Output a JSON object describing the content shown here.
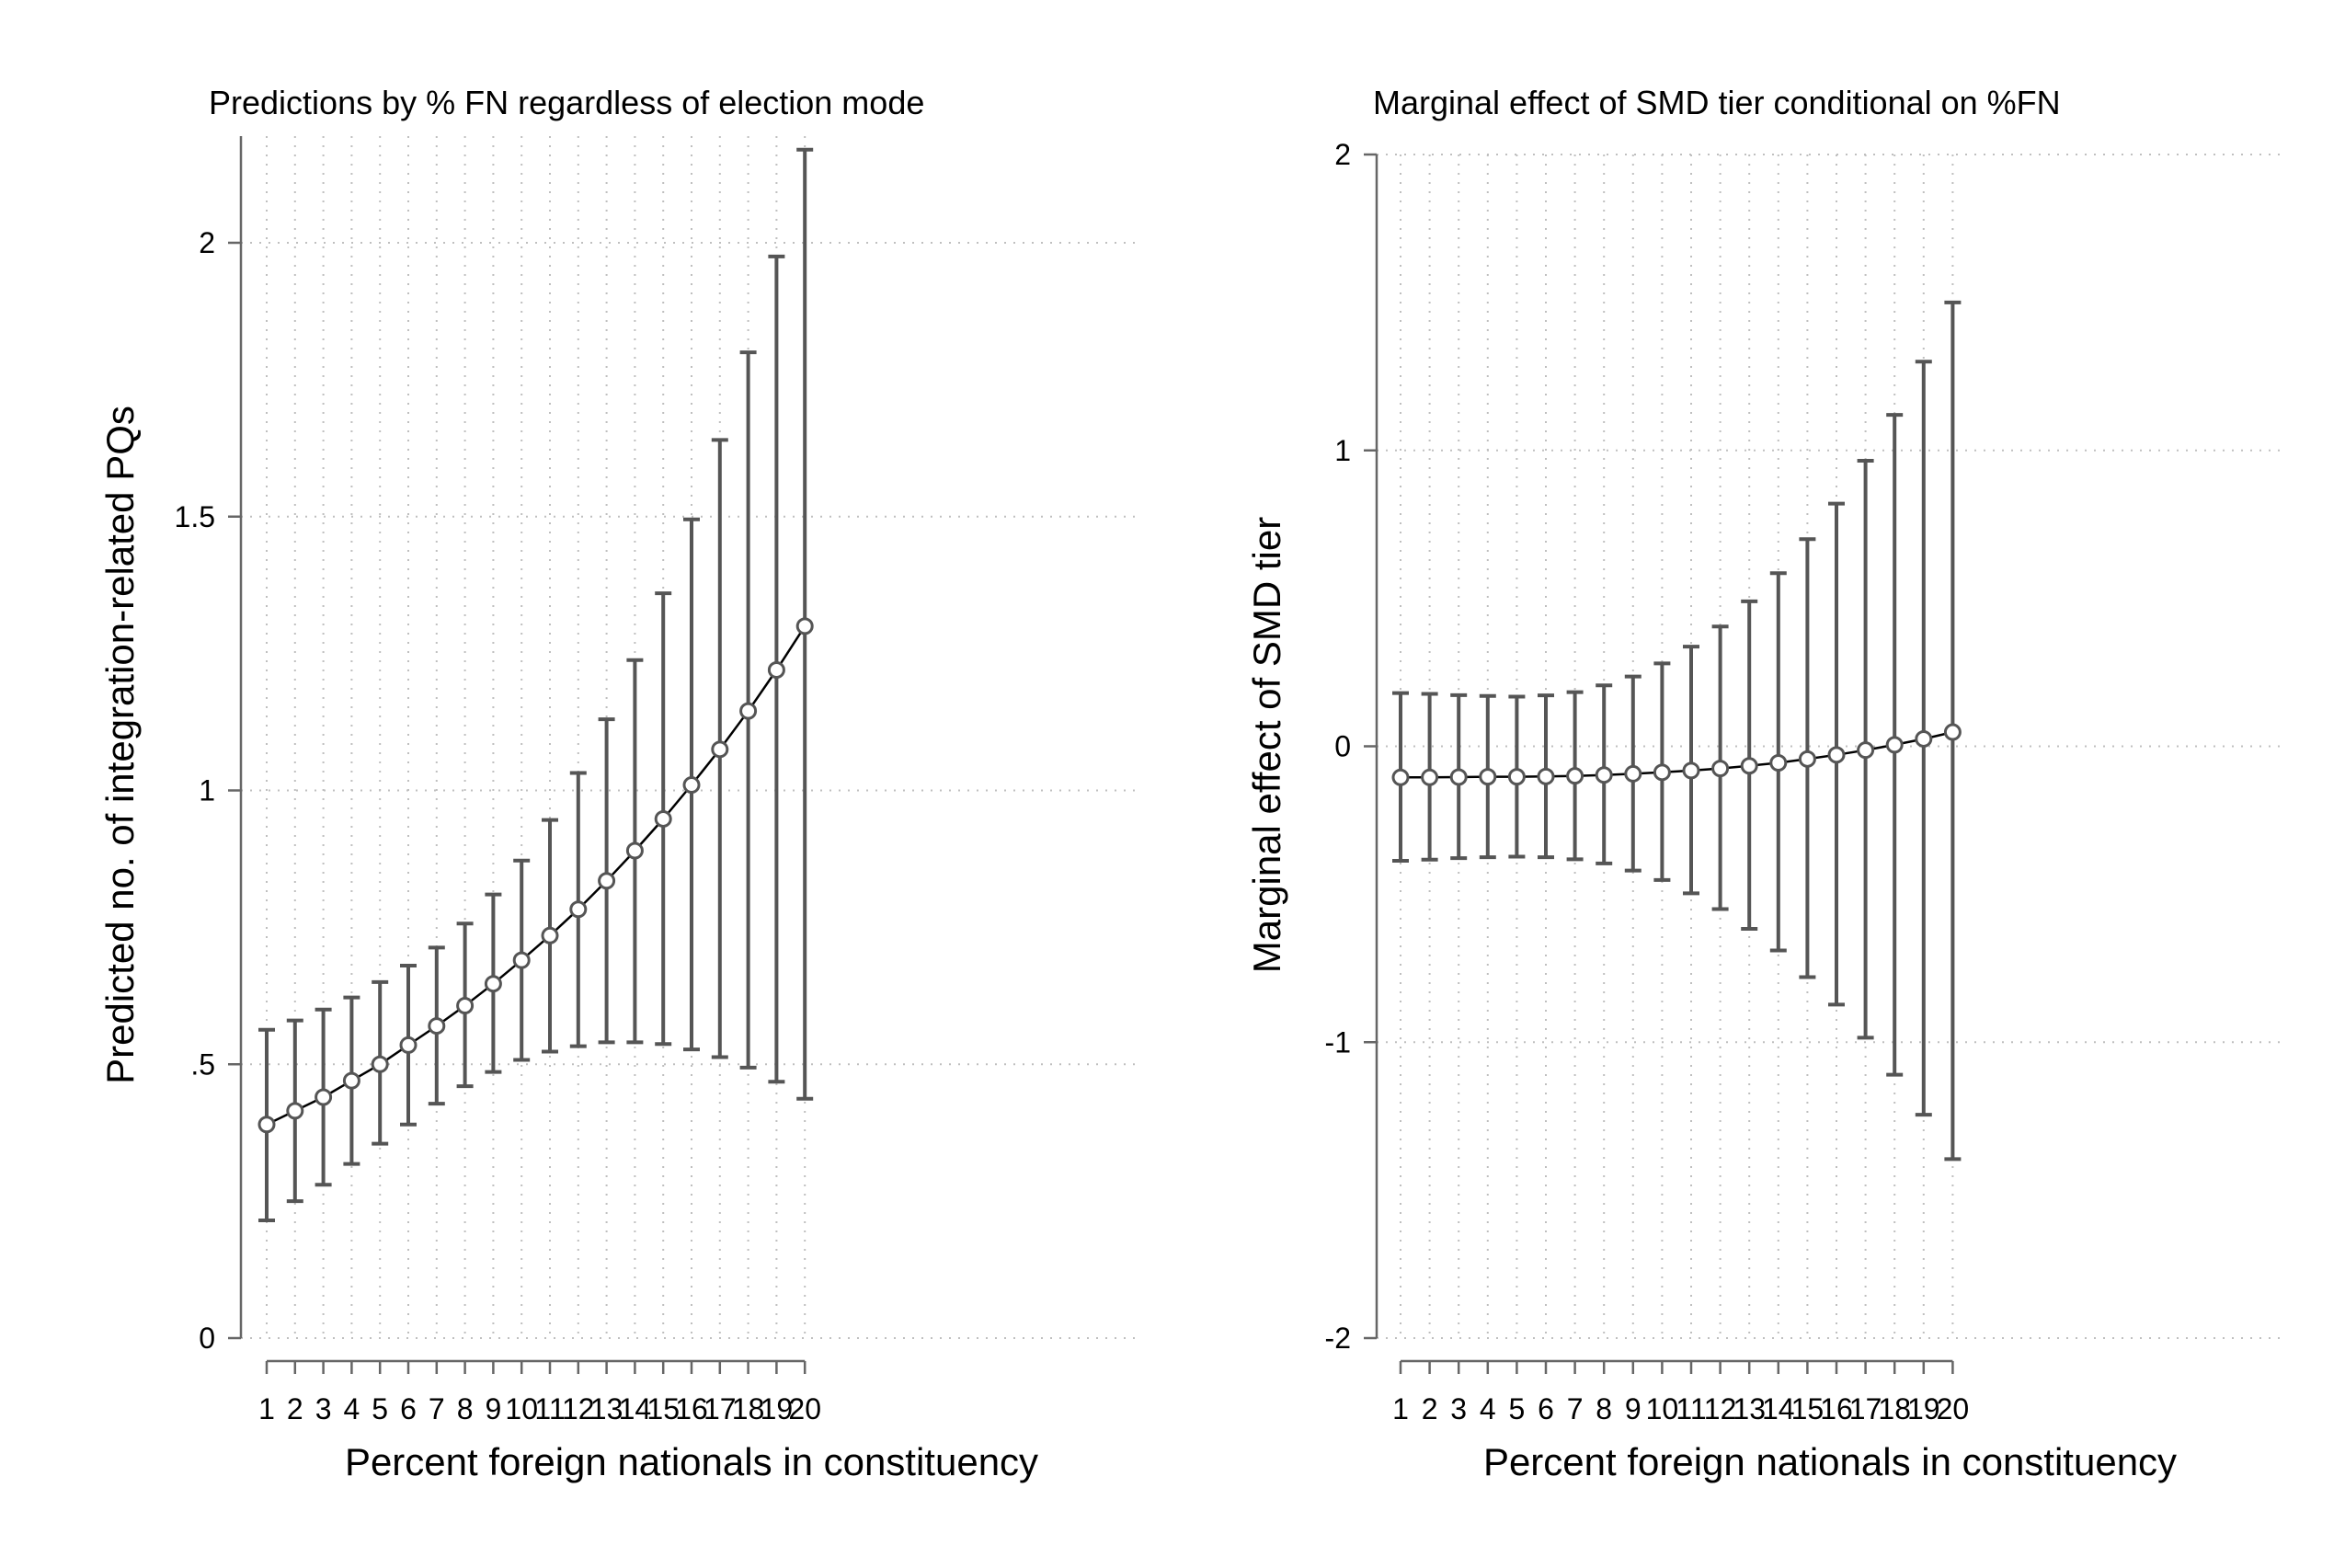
{
  "chart_data": [
    {
      "type": "line",
      "title": "Predictions by % FN regardless of election mode",
      "xlabel": "Percent foreign nationals in constituency",
      "ylabel": "Predicted no. of integration-related PQs",
      "x": [
        1,
        2,
        3,
        4,
        5,
        6,
        7,
        8,
        9,
        10,
        11,
        12,
        13,
        14,
        15,
        16,
        17,
        18,
        19,
        20
      ],
      "series": [
        {
          "values": [
            0.39,
            0.415,
            0.44,
            0.47,
            0.5,
            0.535,
            0.57,
            0.607,
            0.647,
            0.69,
            0.735,
            0.783,
            0.835,
            0.89,
            0.948,
            1.01,
            1.075,
            1.145,
            1.22,
            1.3
          ],
          "ci_lower": [
            0.215,
            0.25,
            0.28,
            0.318,
            0.355,
            0.39,
            0.428,
            0.46,
            0.486,
            0.508,
            0.523,
            0.533,
            0.54,
            0.54,
            0.537,
            0.527,
            0.513,
            0.494,
            0.468,
            0.437
          ],
          "ci_upper": [
            0.563,
            0.58,
            0.6,
            0.622,
            0.65,
            0.68,
            0.713,
            0.757,
            0.81,
            0.872,
            0.946,
            1.032,
            1.13,
            1.238,
            1.36,
            1.495,
            1.64,
            1.8,
            1.975,
            2.17
          ]
        }
      ],
      "xticks": [
        "1",
        "2",
        "3",
        "4",
        "5",
        "6",
        "7",
        "8",
        "9",
        "10",
        "11",
        "12",
        "13",
        "14",
        "15",
        "16",
        "17",
        "18",
        "19",
        "20"
      ],
      "yticks": [
        {
          "value": 0,
          "label": "0"
        },
        {
          "value": 0.5,
          "label": ".5"
        },
        {
          "value": 1,
          "label": "1"
        },
        {
          "value": 1.5,
          "label": "1.5"
        },
        {
          "value": 2,
          "label": "2"
        }
      ],
      "ylim": [
        0,
        2.2
      ],
      "grid": true,
      "error_bars": true,
      "smooth_line": true
    },
    {
      "type": "line",
      "title": "Marginal effect of SMD tier conditional on %FN",
      "xlabel": "Percent foreign nationals in constituency",
      "ylabel": "Marginal effect of SMD tier",
      "x": [
        1,
        2,
        3,
        4,
        5,
        6,
        7,
        8,
        9,
        10,
        11,
        12,
        13,
        14,
        15,
        16,
        17,
        18,
        19,
        20
      ],
      "series": [
        {
          "values": [
            -0.105,
            -0.105,
            -0.104,
            -0.103,
            -0.103,
            -0.102,
            -0.1,
            -0.097,
            -0.093,
            -0.088,
            -0.082,
            -0.075,
            -0.066,
            -0.056,
            -0.043,
            -0.029,
            -0.013,
            0.005,
            0.025,
            0.048
          ],
          "ci_lower": [
            -0.387,
            -0.383,
            -0.378,
            -0.375,
            -0.373,
            -0.375,
            -0.382,
            -0.396,
            -0.42,
            -0.452,
            -0.497,
            -0.55,
            -0.617,
            -0.69,
            -0.78,
            -0.873,
            -0.985,
            -1.11,
            -1.245,
            -1.395
          ],
          "ci_upper": [
            0.18,
            0.177,
            0.173,
            0.17,
            0.168,
            0.172,
            0.183,
            0.206,
            0.236,
            0.28,
            0.337,
            0.405,
            0.49,
            0.585,
            0.7,
            0.82,
            0.965,
            1.12,
            1.3,
            1.5
          ]
        }
      ],
      "xticks": [
        "1",
        "2",
        "3",
        "4",
        "5",
        "6",
        "7",
        "8",
        "9",
        "10",
        "11",
        "12",
        "13",
        "14",
        "15",
        "16",
        "17",
        "18",
        "19",
        "20"
      ],
      "yticks": [
        {
          "value": -2,
          "label": "-2"
        },
        {
          "value": -1,
          "label": "-1"
        },
        {
          "value": 0,
          "label": "0"
        },
        {
          "value": 1,
          "label": "1"
        },
        {
          "value": 2,
          "label": "2"
        }
      ],
      "ylim": [
        -2,
        2
      ],
      "grid": true,
      "error_bars": true,
      "smooth_line": true
    }
  ],
  "colors": {
    "line": "#000000",
    "error_bar": "#555555",
    "marker": "#555555",
    "grid": "#bfbfbf",
    "axis": "#666666"
  }
}
